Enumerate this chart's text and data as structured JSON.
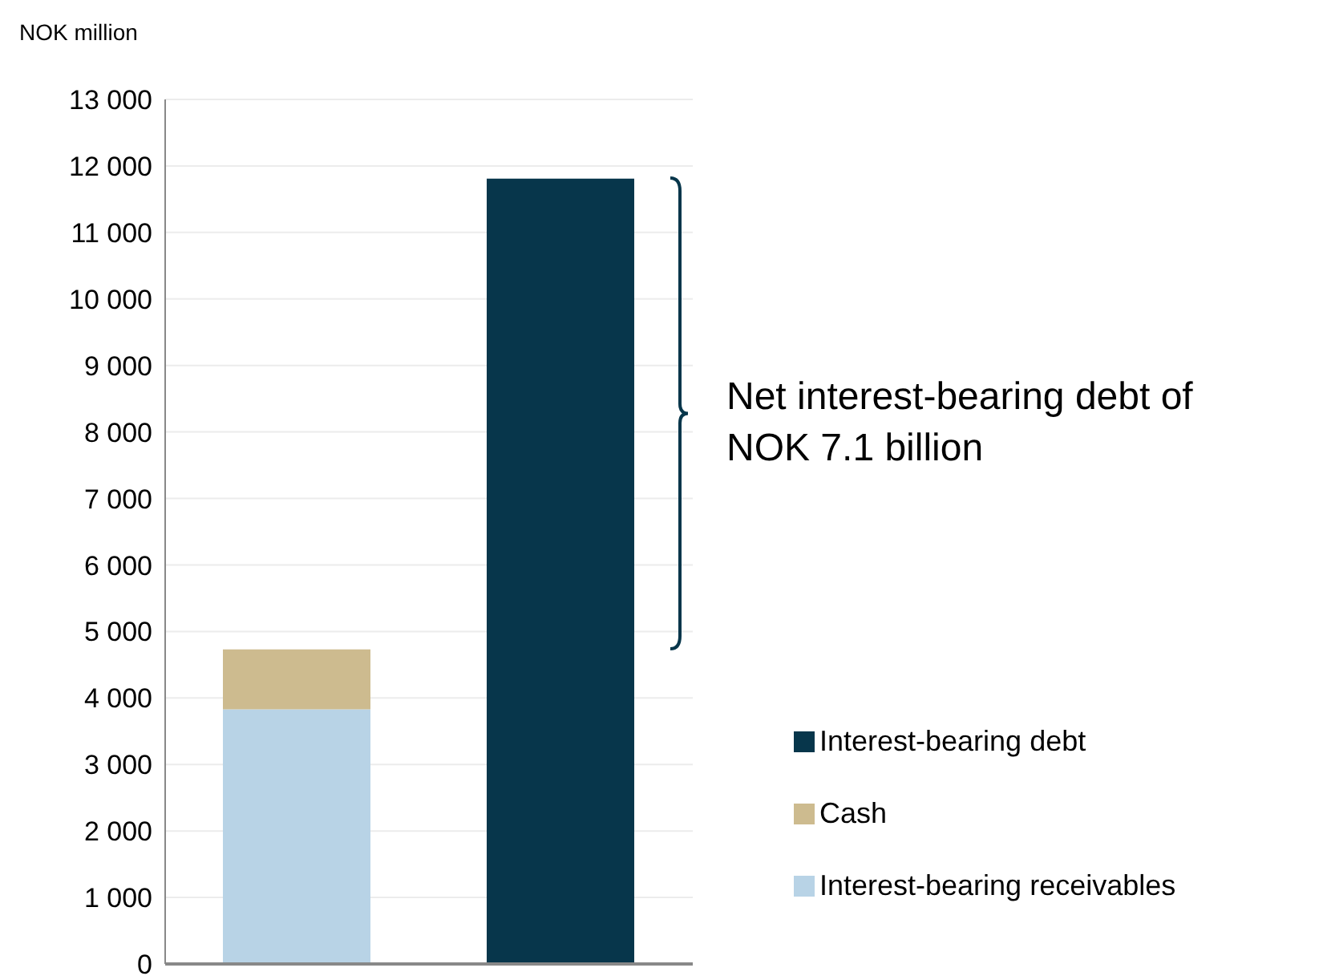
{
  "chart_data": {
    "type": "bar",
    "stacked": true,
    "ylabel": "NOK million",
    "categories": [
      null,
      null
    ],
    "series": [
      {
        "name": "Interest-bearing receivables",
        "color": "#b8d3e6",
        "values": [
          3830,
          null
        ]
      },
      {
        "name": "Cash",
        "color": "#cdbb8f",
        "values": [
          900,
          null
        ]
      },
      {
        "name": "Interest-bearing debt",
        "color": "#07364b",
        "values": [
          null,
          11810
        ]
      }
    ],
    "ylim": [
      0,
      13000
    ],
    "yticks": [
      {
        "value": 0,
        "label": "0"
      },
      {
        "value": 1000,
        "label": "1 000"
      },
      {
        "value": 2000,
        "label": "2 000"
      },
      {
        "value": 3000,
        "label": "3 000"
      },
      {
        "value": 4000,
        "label": "4 000"
      },
      {
        "value": 5000,
        "label": "5 000"
      },
      {
        "value": 6000,
        "label": "6 000"
      },
      {
        "value": 7000,
        "label": "7 000"
      },
      {
        "value": 8000,
        "label": "8 000"
      },
      {
        "value": 9000,
        "label": "9 000"
      },
      {
        "value": 10000,
        "label": "10 000"
      },
      {
        "value": 11000,
        "label": "11 000"
      },
      {
        "value": 12000,
        "label": "12 000"
      },
      {
        "value": 13000,
        "label": "13 000"
      }
    ],
    "grid": "y",
    "legend": "bottom right",
    "annotations": [
      "Net interest-bearing debt of NOK 7.1 billion"
    ]
  }
}
